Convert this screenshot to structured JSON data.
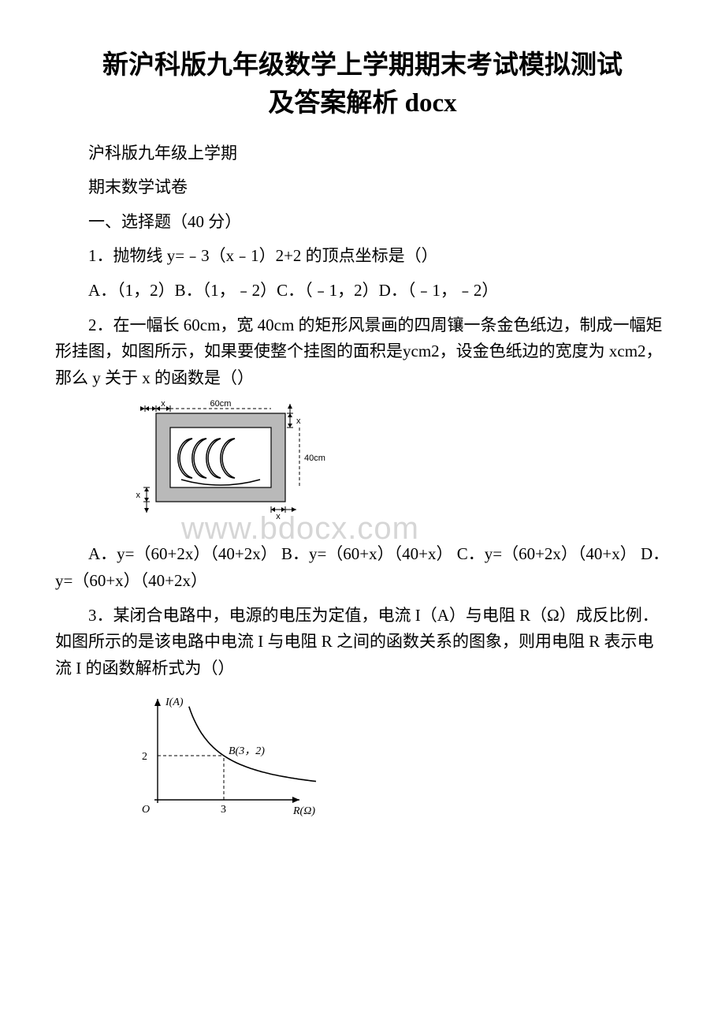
{
  "title_l1": "新沪科版九年级数学上学期期末考试模拟测试",
  "title_l2": "及答案解析 docx",
  "p1": "沪科版九年级上学期",
  "p2": "期末数学试卷",
  "p3": "一、选择题（40 分）",
  "q1": "1．抛物线 y=﹣3（x﹣1）2+2 的顶点坐标是（）",
  "q1opts": "A．（1，2）B．（1，﹣2）C．（﹣1，2）D．（﹣1，﹣2）",
  "q2": "2．在一幅长 60cm，宽 40cm 的矩形风景画的四周镶一条金色纸边，制成一幅矩形挂图，如图所示，如果要使整个挂图的面积是ycm2，设金色纸边的宽度为 xcm2，那么 y 关于 x 的函数是（）",
  "q2opts": "A．y=（60+2x）（40+2x） B．y=（60+x）（40+x） C．y=（60+2x）（40+x） D．y=（60+x）（40+2x）",
  "q3": "3．某闭合电路中，电源的电压为定值，电流 I（A）与电阻 R（Ω）成反比例．如图所示的是该电路中电流 I 与电阻 R 之间的函数关系的图象，则用电阻 R 表示电流 I 的函数解析式为（）",
  "watermark": "www.bdocx.com",
  "fig1": {
    "outer_fill": "#b9b9b9",
    "border": "#000000",
    "dash": "#000000",
    "label_60cm": "60cm",
    "label_40cm": "40cm",
    "label_x": "x",
    "font_family": "Arial",
    "font_size": 11
  },
  "fig2": {
    "axis_color": "#000000",
    "curve_color": "#000000",
    "dash_color": "#000000",
    "label_IA": "I(A)",
    "label_RO": "R(Ω)",
    "label_B": "B(3，2)",
    "label_O": "O",
    "label_2": "2",
    "label_3": "3",
    "font_family": "Times New Roman",
    "font_size": 14,
    "font_size_small": 12
  }
}
